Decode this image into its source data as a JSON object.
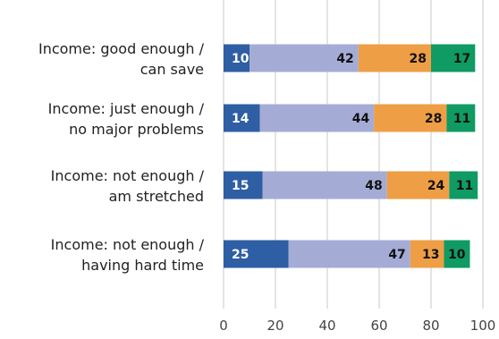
{
  "chart_data": {
    "type": "bar",
    "orientation": "horizontal",
    "stacked": true,
    "categories": [
      [
        "Income: good enough /",
        "can save"
      ],
      [
        "Income: just enough /",
        "no major problems"
      ],
      [
        "Income: not enough /",
        "am stretched"
      ],
      [
        "Income: not enough /",
        "having hard time"
      ]
    ],
    "series": [
      {
        "values": [
          10,
          14,
          15,
          25
        ],
        "color": "#2e5ea4",
        "label_color": "#ffffff"
      },
      {
        "values": [
          42,
          44,
          48,
          47
        ],
        "color": "#a4acd5",
        "label_color": "#111111"
      },
      {
        "values": [
          28,
          28,
          24,
          13
        ],
        "color": "#ee9e45",
        "label_color": "#111111"
      },
      {
        "values": [
          17,
          11,
          11,
          10
        ],
        "color": "#0f9b63",
        "label_color": "#111111"
      }
    ],
    "xlim": [
      0,
      100
    ],
    "xticks": [
      0,
      20,
      40,
      60,
      80,
      100
    ],
    "grid": true,
    "legend": "none"
  }
}
